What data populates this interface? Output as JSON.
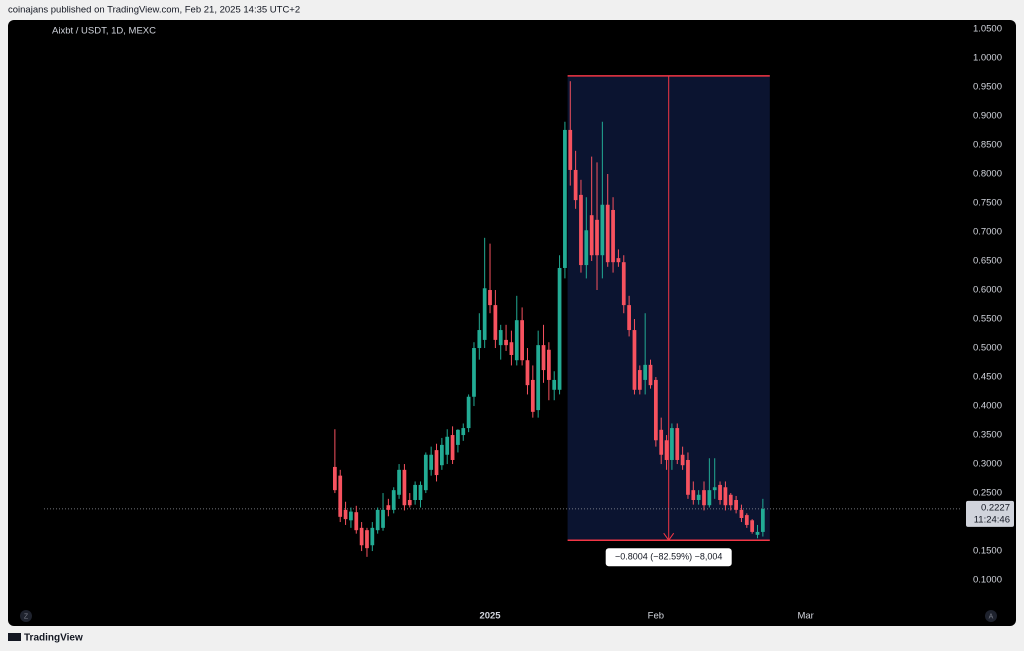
{
  "header": "coinajans published on TradingView.com, Feb 21, 2025 14:35 UTC+2",
  "footer": "TradingView",
  "chart_data": {
    "type": "candlestick",
    "title": "Aixbt / USDT, 1D, MEXC",
    "up_color": "#22ab94",
    "down_color": "#f7525f",
    "grid": false,
    "open": [
      0.295,
      0.28,
      0.221,
      0.203,
      0.217,
      0.19,
      0.186,
      0.16,
      0.186,
      0.19,
      0.229,
      0.221,
      0.247,
      0.29,
      0.238,
      0.238,
      0.238,
      0.255,
      0.29,
      0.324,
      0.298,
      0.316,
      0.35,
      0.333,
      0.35,
      0.362,
      0.416,
      0.5,
      0.514,
      0.6,
      0.574,
      0.505,
      0.514,
      0.51,
      0.479,
      0.548,
      0.479,
      0.445,
      0.393,
      0.505,
      0.497,
      0.428,
      0.428,
      0.638,
      0.876,
      0.807,
      0.764,
      0.643,
      0.729,
      0.721,
      0.66,
      0.747,
      0.738,
      0.655,
      0.648,
      0.574,
      0.531,
      0.462,
      0.445,
      0.471,
      0.445,
      0.359,
      0.341,
      0.307,
      0.362,
      0.316,
      0.307,
      0.255,
      0.238,
      0.255,
      0.229,
      0.255,
      0.264,
      0.26,
      0.247,
      0.238,
      0.221,
      0.212,
      0.203,
      0.178,
      0.183
    ],
    "high": [
      0.36,
      0.29,
      0.235,
      0.225,
      0.228,
      0.2,
      0.19,
      0.2,
      0.225,
      0.25,
      0.24,
      0.26,
      0.3,
      0.3,
      0.25,
      0.27,
      0.27,
      0.32,
      0.33,
      0.335,
      0.345,
      0.36,
      0.365,
      0.36,
      0.37,
      0.42,
      0.51,
      0.56,
      0.69,
      0.68,
      0.6,
      0.54,
      0.54,
      0.53,
      0.59,
      0.57,
      0.5,
      0.47,
      0.53,
      0.54,
      0.51,
      0.46,
      0.66,
      0.89,
      0.96,
      0.84,
      0.79,
      0.76,
      0.83,
      0.82,
      0.89,
      0.8,
      0.76,
      0.67,
      0.66,
      0.59,
      0.55,
      0.47,
      0.56,
      0.48,
      0.45,
      0.38,
      0.35,
      0.37,
      0.37,
      0.33,
      0.32,
      0.27,
      0.255,
      0.27,
      0.31,
      0.31,
      0.27,
      0.27,
      0.25,
      0.245,
      0.23,
      0.215,
      0.205,
      0.195,
      0.24
    ],
    "low": [
      0.25,
      0.2,
      0.195,
      0.19,
      0.18,
      0.15,
      0.14,
      0.15,
      0.18,
      0.185,
      0.21,
      0.215,
      0.24,
      0.22,
      0.225,
      0.23,
      0.225,
      0.25,
      0.28,
      0.27,
      0.29,
      0.3,
      0.3,
      0.32,
      0.34,
      0.355,
      0.4,
      0.48,
      0.5,
      0.56,
      0.5,
      0.48,
      0.495,
      0.47,
      0.47,
      0.47,
      0.42,
      0.38,
      0.38,
      0.44,
      0.41,
      0.41,
      0.42,
      0.62,
      0.78,
      0.74,
      0.63,
      0.62,
      0.65,
      0.6,
      0.62,
      0.64,
      0.63,
      0.64,
      0.56,
      0.52,
      0.42,
      0.42,
      0.42,
      0.43,
      0.33,
      0.3,
      0.29,
      0.29,
      0.3,
      0.29,
      0.24,
      0.23,
      0.23,
      0.22,
      0.225,
      0.24,
      0.23,
      0.22,
      0.22,
      0.215,
      0.2,
      0.19,
      0.18,
      0.172,
      0.175
    ],
    "close": [
      0.255,
      0.209,
      0.205,
      0.218,
      0.186,
      0.16,
      0.155,
      0.19,
      0.221,
      0.221,
      0.221,
      0.255,
      0.29,
      0.229,
      0.229,
      0.264,
      0.264,
      0.316,
      0.316,
      0.281,
      0.333,
      0.347,
      0.307,
      0.359,
      0.362,
      0.416,
      0.5,
      0.531,
      0.603,
      0.574,
      0.514,
      0.531,
      0.505,
      0.488,
      0.548,
      0.479,
      0.436,
      0.39,
      0.505,
      0.462,
      0.445,
      0.445,
      0.638,
      0.876,
      0.807,
      0.755,
      0.643,
      0.703,
      0.66,
      0.66,
      0.747,
      0.648,
      0.648,
      0.648,
      0.574,
      0.531,
      0.428,
      0.428,
      0.471,
      0.436,
      0.341,
      0.316,
      0.307,
      0.362,
      0.307,
      0.298,
      0.247,
      0.238,
      0.247,
      0.229,
      0.255,
      0.26,
      0.238,
      0.229,
      0.229,
      0.221,
      0.207,
      0.195,
      0.183,
      0.183,
      0.2227
    ],
    "xlim": [
      -61.1,
      116.85
    ],
    "xticks": [
      {
        "value": 29,
        "label": "2025"
      },
      {
        "value": 60,
        "label": "Feb"
      },
      {
        "value": 88,
        "label": "Mar"
      }
    ],
    "ylim": [
      0.057,
      1.0655
    ],
    "yticks": [
      {
        "value": 0.1,
        "label": "0.1000"
      },
      {
        "value": 0.15,
        "label": "0.1500"
      },
      {
        "value": 0.2,
        "label": "0.2000"
      },
      {
        "value": 0.25,
        "label": "0.2500"
      },
      {
        "value": 0.3,
        "label": "0.3000"
      },
      {
        "value": 0.35,
        "label": "0.3500"
      },
      {
        "value": 0.4,
        "label": "0.4000"
      },
      {
        "value": 0.45,
        "label": "0.4500"
      },
      {
        "value": 0.5,
        "label": "0.5000"
      },
      {
        "value": 0.55,
        "label": "0.5500"
      },
      {
        "value": 0.6,
        "label": "0.6000"
      },
      {
        "value": 0.65,
        "label": "0.6500"
      },
      {
        "value": 0.7,
        "label": "0.7000"
      },
      {
        "value": 0.75,
        "label": "0.7500"
      },
      {
        "value": 0.8,
        "label": "0.8000"
      },
      {
        "value": 0.85,
        "label": "0.8500"
      },
      {
        "value": 0.9,
        "label": "0.9000"
      },
      {
        "value": 0.95,
        "label": "0.9500"
      },
      {
        "value": 1.0,
        "label": "1.0000"
      },
      {
        "value": 1.05,
        "label": "1.0500"
      }
    ],
    "last_price": {
      "value": 0.2227,
      "label": "0.2227",
      "countdown": "11:24:46"
    },
    "measure": {
      "x_range": [
        43.5,
        81.3
      ],
      "from": 0.9691,
      "to": 0.1687,
      "label": "−0.8004 (−82.59%) −8,004"
    },
    "corner_buttons": [
      "Z",
      "A"
    ]
  }
}
